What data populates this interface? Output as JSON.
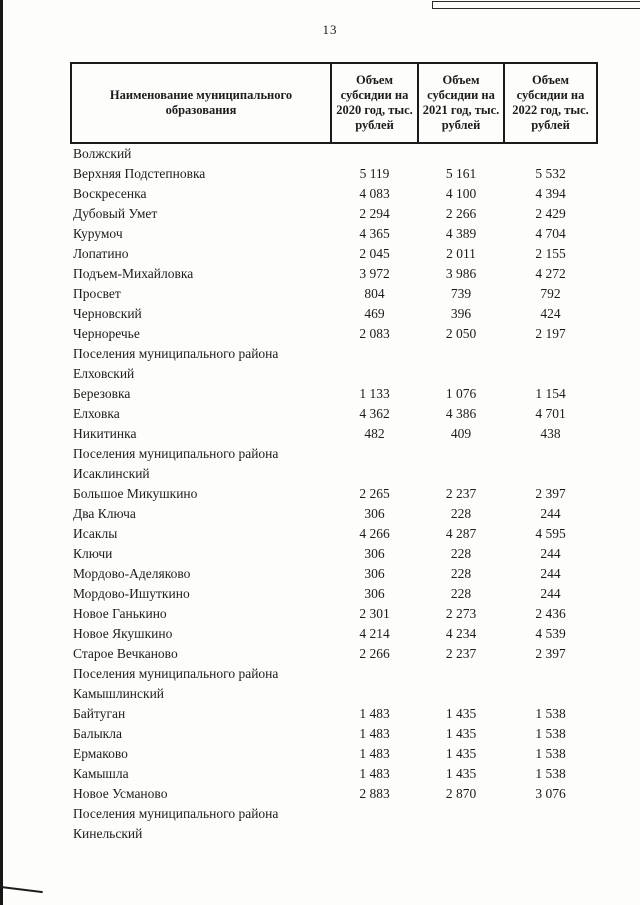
{
  "page": {
    "number": "13"
  },
  "table": {
    "columns": [
      {
        "label": "Наименование муниципального образования"
      },
      {
        "label": "Объем субсидии на 2020 год, тыс. рублей"
      },
      {
        "label": "Объем субсидии на 2021 год, тыс. рублей"
      },
      {
        "label": "Объем субсидии на 2022 год, тыс. рублей"
      }
    ],
    "rows": [
      {
        "name": "Волжский",
        "values": []
      },
      {
        "name": "Верхняя Подстепновка",
        "values": [
          "5 119",
          "5 161",
          "5 532"
        ]
      },
      {
        "name": "Воскресенка",
        "values": [
          "4 083",
          "4 100",
          "4 394"
        ]
      },
      {
        "name": "Дубовый Умет",
        "values": [
          "2 294",
          "2 266",
          "2 429"
        ]
      },
      {
        "name": "Курумоч",
        "values": [
          "4 365",
          "4 389",
          "4 704"
        ]
      },
      {
        "name": "Лопатино",
        "values": [
          "2 045",
          "2 011",
          "2 155"
        ]
      },
      {
        "name": "Подъем-Михайловка",
        "values": [
          "3 972",
          "3 986",
          "4 272"
        ]
      },
      {
        "name": "Просвет",
        "values": [
          "804",
          "739",
          "792"
        ]
      },
      {
        "name": "Черновский",
        "values": [
          "469",
          "396",
          "424"
        ]
      },
      {
        "name": "Черноречье",
        "values": [
          "2 083",
          "2 050",
          "2 197"
        ]
      },
      {
        "name": "Поселения муниципального района",
        "values": []
      },
      {
        "name": "Елховский",
        "values": []
      },
      {
        "name": "Березовка",
        "values": [
          "1 133",
          "1 076",
          "1 154"
        ]
      },
      {
        "name": "Елховка",
        "values": [
          "4 362",
          "4 386",
          "4 701"
        ]
      },
      {
        "name": "Никитинка",
        "values": [
          "482",
          "409",
          "438"
        ]
      },
      {
        "name": "Поселения муниципального района",
        "values": []
      },
      {
        "name": "Исаклинский",
        "values": []
      },
      {
        "name": "Большое Микушкино",
        "values": [
          "2 265",
          "2 237",
          "2 397"
        ]
      },
      {
        "name": "Два Ключа",
        "values": [
          "306",
          "228",
          "244"
        ]
      },
      {
        "name": "Исаклы",
        "values": [
          "4 266",
          "4 287",
          "4 595"
        ]
      },
      {
        "name": "Ключи",
        "values": [
          "306",
          "228",
          "244"
        ]
      },
      {
        "name": "Мордово-Аделяково",
        "values": [
          "306",
          "228",
          "244"
        ]
      },
      {
        "name": "Мордово-Ишуткино",
        "values": [
          "306",
          "228",
          "244"
        ]
      },
      {
        "name": "Новое Ганькино",
        "values": [
          "2 301",
          "2 273",
          "2 436"
        ]
      },
      {
        "name": "Новое Якушкино",
        "values": [
          "4 214",
          "4 234",
          "4 539"
        ]
      },
      {
        "name": "Старое Вечканово",
        "values": [
          "2 266",
          "2 237",
          "2 397"
        ]
      },
      {
        "name": "Поселения муниципального района",
        "values": []
      },
      {
        "name": "Камышлинский",
        "values": []
      },
      {
        "name": "Байтуган",
        "values": [
          "1 483",
          "1 435",
          "1 538"
        ]
      },
      {
        "name": "Балыкла",
        "values": [
          "1 483",
          "1 435",
          "1 538"
        ]
      },
      {
        "name": "Ермаково",
        "values": [
          "1 483",
          "1 435",
          "1 538"
        ]
      },
      {
        "name": "Камышла",
        "values": [
          "1 483",
          "1 435",
          "1 538"
        ]
      },
      {
        "name": "Новое Усманово",
        "values": [
          "2 883",
          "2 870",
          "3 076"
        ]
      },
      {
        "name": "Поселения муниципального района",
        "values": []
      },
      {
        "name": "Кинельский",
        "values": []
      }
    ]
  }
}
